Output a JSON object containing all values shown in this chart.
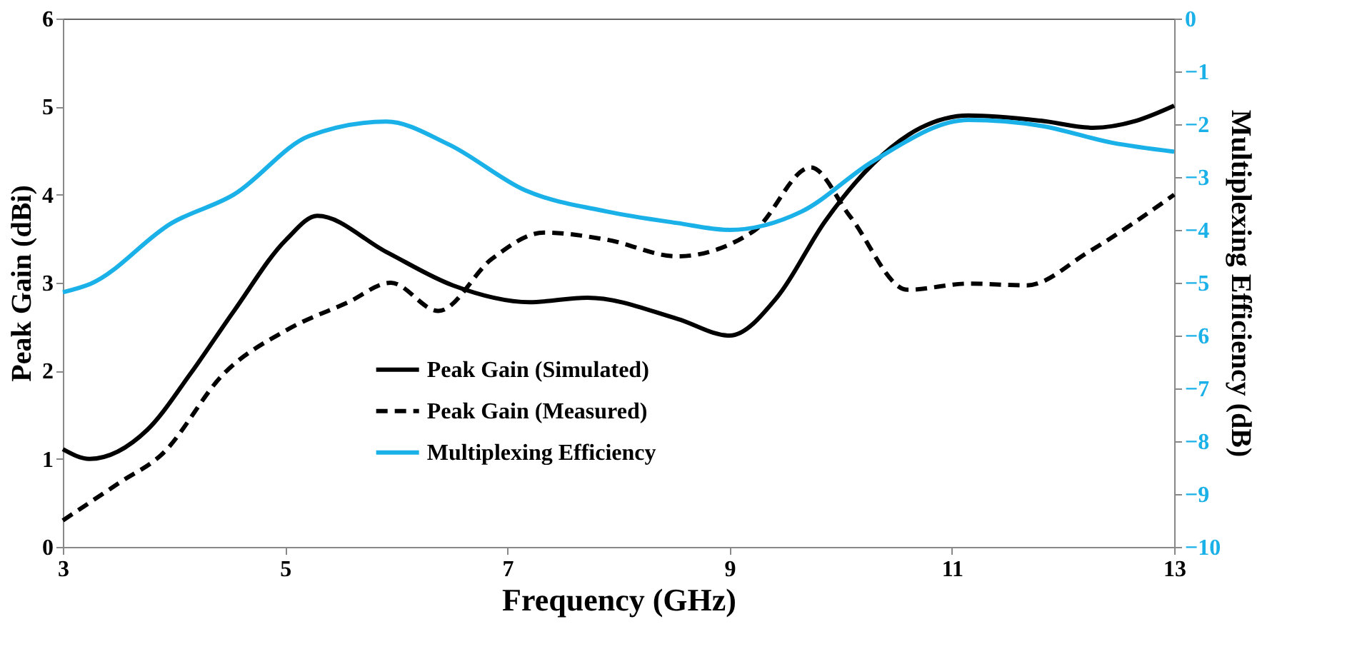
{
  "chart_data": {
    "type": "line",
    "xlabel": "Frequency (GHz)",
    "ylabel": "Peak Gain (dBi)",
    "y2label": "Multiplexing Efficiency (dB)",
    "xlim": [
      3,
      13
    ],
    "xticks": [
      3,
      5,
      7,
      9,
      11,
      13
    ],
    "ylim": [
      0,
      6
    ],
    "yticks": [
      0,
      1,
      2,
      3,
      4,
      5,
      6
    ],
    "y2lim": [
      -10,
      0
    ],
    "y2ticks": [
      -10,
      -9,
      -8,
      -7,
      -6,
      -5,
      -4,
      -3,
      -2,
      -1,
      0
    ],
    "grid": false,
    "legend": "bottom",
    "marker": "none",
    "series": [
      {
        "name": "Peak Gain (Simulated)",
        "color": "#000000",
        "line_style": "solid",
        "x": [
          3.0,
          3.24,
          3.76,
          4.15,
          4.54,
          5.01,
          5.29,
          5.91,
          6.51,
          7.2,
          7.72,
          8.53,
          9.0,
          9.43,
          9.86,
          10.29,
          10.72,
          11.15,
          11.8,
          12.27,
          12.66,
          13.0
        ],
        "values": [
          1.11,
          1.0,
          1.33,
          1.97,
          2.68,
          3.49,
          3.76,
          3.35,
          2.97,
          2.78,
          2.83,
          2.59,
          2.4,
          2.84,
          3.7,
          4.35,
          4.76,
          4.9,
          4.84,
          4.76,
          4.84,
          5.01
        ]
      },
      {
        "name": "Peak Gain (Measured)",
        "color": "#000000",
        "line_style": "dashed",
        "x": [
          3.0,
          3.51,
          3.89,
          4.45,
          5.01,
          5.57,
          5.95,
          6.38,
          6.86,
          7.33,
          7.89,
          8.53,
          9.22,
          9.73,
          10.08,
          10.6,
          11.15,
          11.67,
          12.23,
          13.0
        ],
        "values": [
          0.3,
          0.73,
          1.05,
          1.97,
          2.46,
          2.78,
          3.0,
          2.68,
          3.27,
          3.57,
          3.49,
          3.3,
          3.59,
          4.31,
          3.76,
          2.92,
          2.99,
          2.97,
          3.35,
          4.0
        ]
      },
      {
        "name": "Multiplexing Efficiency",
        "color": "#1ab0e8",
        "line_style": "solid",
        "axis": "y2",
        "x": [
          3.0,
          3.25,
          3.98,
          4.54,
          5.22,
          5.91,
          6.47,
          7.16,
          7.89,
          8.53,
          9.0,
          9.65,
          10.29,
          11.15,
          11.8,
          12.44,
          13.0
        ],
        "values": [
          -5.18,
          -5.02,
          -3.87,
          -3.33,
          -2.22,
          -1.95,
          -2.38,
          -3.25,
          -3.65,
          -3.87,
          -4.0,
          -3.65,
          -2.7,
          -1.92,
          -2.03,
          -2.35,
          -2.52
        ]
      }
    ]
  }
}
